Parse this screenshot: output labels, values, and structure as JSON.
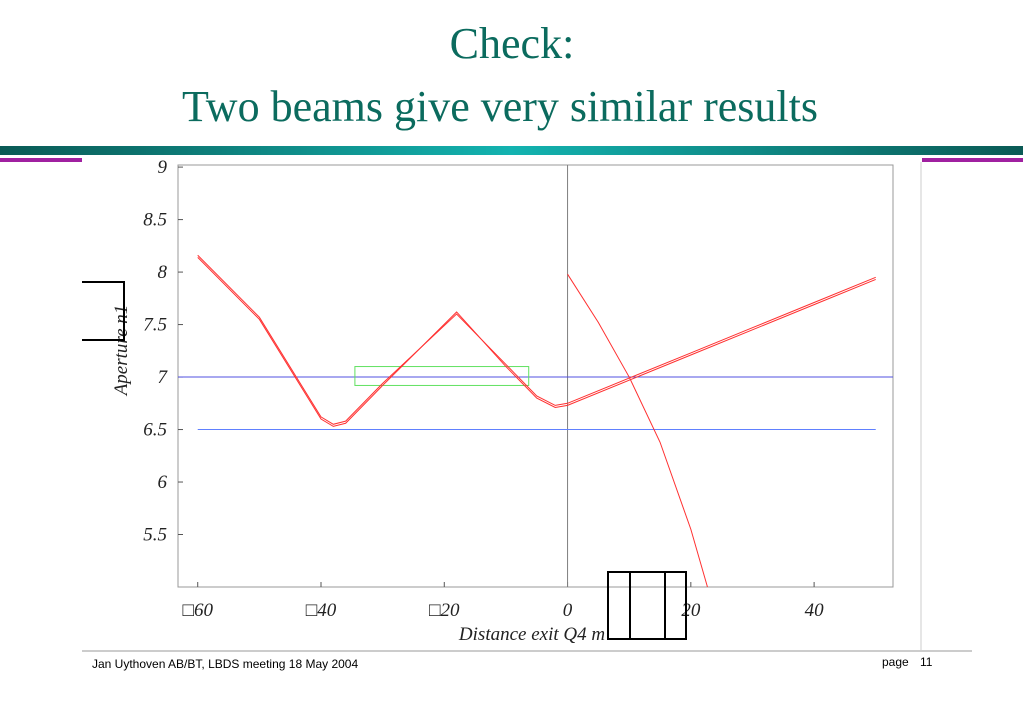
{
  "slide": {
    "title_line1": "Check:",
    "title_line2": "Two beams give very similar results",
    "footer": "Jan Uythoven AB/BT, LBDS meeting 18 May 2004",
    "page_label": "page",
    "page_number": 11
  },
  "chart_data": {
    "type": "line",
    "xlabel": "Distance exit Q4  m",
    "ylabel": "Aperture n1",
    "xlim": [
      -63.2,
      52.8
    ],
    "ylim": [
      5,
      9.02
    ],
    "xticks": [
      {
        "value": -60,
        "label": "□60"
      },
      {
        "value": -40,
        "label": "□40"
      },
      {
        "value": -20,
        "label": "□20"
      },
      0,
      20,
      40
    ],
    "yticks": [
      5.5,
      6,
      6.5,
      7,
      7.5,
      8,
      8.5,
      9
    ],
    "series": [
      {
        "color": "#ff3030",
        "x": [
          -60,
          -50,
          -40,
          -38,
          -36,
          -30,
          -18,
          -10,
          -5,
          -2,
          0,
          10,
          20,
          30,
          40,
          50
        ],
        "values": [
          8.14,
          7.55,
          6.6,
          6.53,
          6.56,
          6.92,
          7.62,
          7.1,
          6.8,
          6.71,
          6.73,
          6.97,
          7.21,
          7.45,
          7.69,
          7.93
        ]
      },
      {
        "color": "#ff3030",
        "x": [
          -60,
          -50,
          -40,
          -38,
          -36,
          -30,
          -18,
          -10,
          -5,
          -2,
          0,
          10,
          20,
          30,
          40,
          50
        ],
        "values": [
          8.16,
          7.57,
          6.62,
          6.55,
          6.58,
          6.94,
          7.6,
          7.12,
          6.82,
          6.73,
          6.75,
          6.99,
          7.23,
          7.47,
          7.71,
          7.95
        ]
      },
      {
        "color": "#ff3030",
        "x": [
          0,
          5,
          10,
          15,
          20,
          22.7
        ],
        "values": [
          7.98,
          7.52,
          7.0,
          6.38,
          5.55,
          5.0
        ]
      }
    ],
    "hlines": [
      {
        "value": 7,
        "x": [
          -63.2,
          52.8
        ],
        "color": "#5050e0"
      },
      {
        "value": 6.5,
        "x": [
          -60,
          50
        ],
        "color": "#6080ff"
      }
    ],
    "vline": {
      "value": 0,
      "color": "#808080"
    },
    "box": {
      "x": [
        -34.5,
        -6.3
      ],
      "y": [
        6.92,
        7.1
      ],
      "color": "#60e060"
    }
  }
}
